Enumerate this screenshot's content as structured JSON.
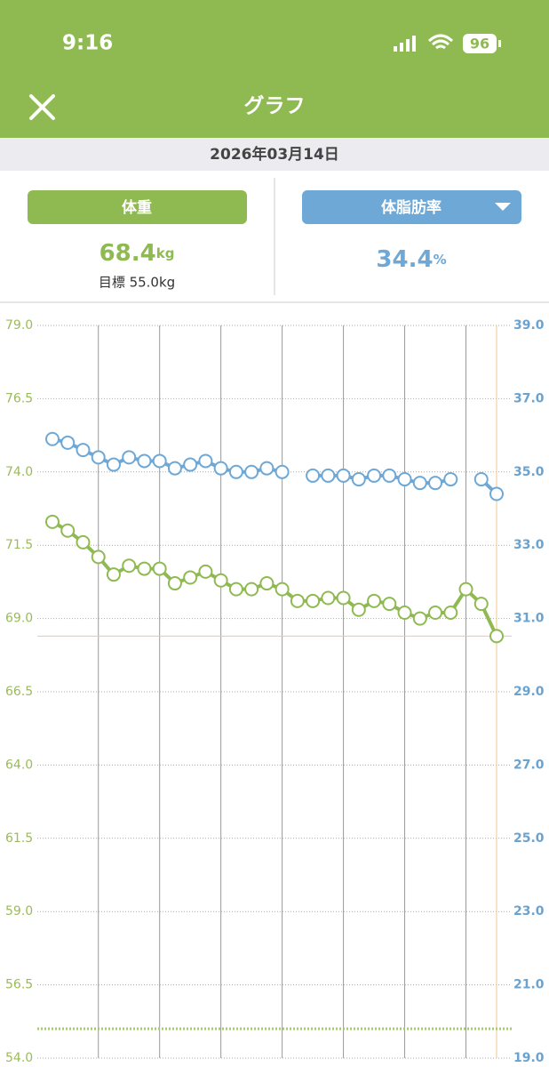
{
  "status_bar": {
    "time": "9:16",
    "battery": "96"
  },
  "header": {
    "title": "グラフ"
  },
  "date": "2026年03月14日",
  "cards": {
    "weight_value": "68.4",
    "weight_unit": "kg",
    "goal": "目標 55.0kg",
    "fat_value": "34.4",
    "fat_unit": "%"
  },
  "chart_data": {
    "type": "line",
    "ylim": [
      54,
      79
    ],
    "yticks": [
      {
        "value": 79,
        "label": "79.0"
      },
      {
        "value": 76.5,
        "label": "76.5"
      },
      {
        "value": 74,
        "label": "74.0"
      },
      {
        "value": 71.5,
        "label": "71.5"
      },
      {
        "value": 69,
        "label": "69.0"
      },
      {
        "value": 66.5,
        "label": "66.5"
      },
      {
        "value": 64,
        "label": "64.0"
      },
      {
        "value": 61.5,
        "label": "61.5"
      },
      {
        "value": 59,
        "label": "59.0"
      },
      {
        "value": 56.5,
        "label": "56.5"
      },
      {
        "value": 54,
        "label": "54.0"
      }
    ],
    "y2lim": [
      19,
      39
    ],
    "y2ticks": [
      {
        "value": 39,
        "label": "39.0"
      },
      {
        "value": 37,
        "label": "37.0"
      },
      {
        "value": 35,
        "label": "35.0"
      },
      {
        "value": 33,
        "label": "33.0"
      },
      {
        "value": 31,
        "label": "31.0"
      },
      {
        "value": 29,
        "label": "29.0"
      },
      {
        "value": 27,
        "label": "27.0"
      },
      {
        "value": 25,
        "label": "25.0"
      },
      {
        "value": 23,
        "label": "23.0"
      },
      {
        "value": 21,
        "label": "21.0"
      },
      {
        "value": 19,
        "label": "19.0"
      }
    ],
    "goal": 55,
    "series": [
      {
        "name": "体重",
        "color": "#8fba52",
        "axis": "y",
        "values": [
          72.3,
          72.0,
          71.6,
          71.1,
          70.5,
          70.8,
          70.7,
          70.7,
          70.2,
          70.4,
          70.6,
          70.3,
          70.0,
          70.0,
          70.2,
          70.0,
          69.6,
          69.6,
          69.7,
          69.7,
          69.3,
          69.6,
          69.5,
          69.2,
          69.0,
          69.2,
          69.2,
          70.0,
          69.5,
          68.4
        ]
      },
      {
        "name": "体脂肪率",
        "color": "#6ea8d6",
        "axis": "y2",
        "values": [
          35.9,
          35.8,
          35.6,
          35.4,
          35.2,
          35.4,
          35.3,
          35.3,
          35.1,
          35.2,
          35.3,
          35.1,
          35.0,
          35.0,
          35.1,
          35.0,
          null,
          34.9,
          34.9,
          34.9,
          34.8,
          34.9,
          34.9,
          34.8,
          34.7,
          34.7,
          34.8,
          null,
          34.8,
          34.4
        ]
      }
    ]
  }
}
